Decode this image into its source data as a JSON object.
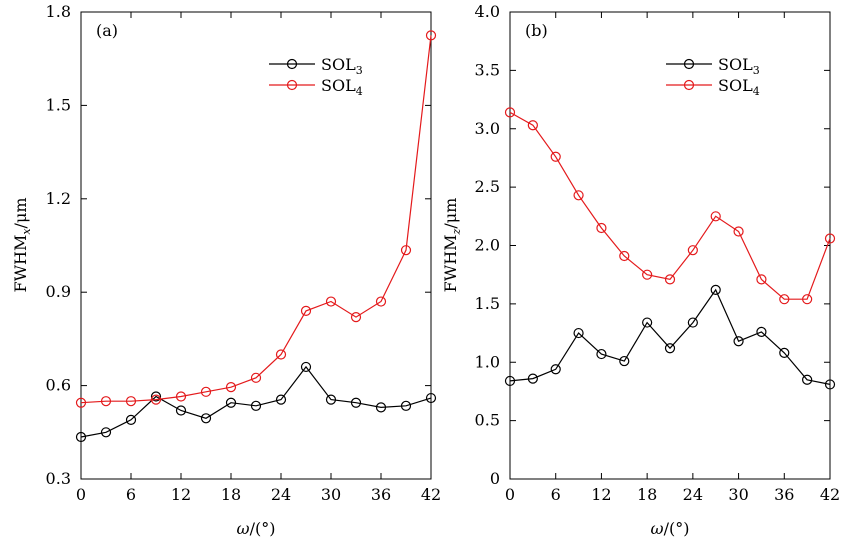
{
  "chart_data": [
    {
      "type": "line",
      "panel_label": "(a)",
      "ylabel_main": "FWHM",
      "ylabel_sub": "x",
      "ylabel_unit": "/μm",
      "xlabel_main": "ω",
      "xlabel_unit": "/(°)",
      "xlim": [
        0,
        42
      ],
      "ylim": [
        0.3,
        1.8
      ],
      "xticks": [
        0,
        6,
        12,
        18,
        24,
        30,
        36,
        42
      ],
      "yticks": [
        0.3,
        0.6,
        0.9,
        1.2,
        1.5,
        1.8
      ],
      "ytick_labels": [
        "0.3",
        "0.6",
        "0.9",
        "1.2",
        "1.5",
        "1.8"
      ],
      "legend_position": "top-right",
      "x": [
        0,
        3,
        6,
        9,
        12,
        15,
        18,
        21,
        24,
        27,
        30,
        33,
        36,
        39,
        42
      ],
      "series": [
        {
          "name": "SOL",
          "name_sub": "3",
          "color": "#000000",
          "values": [
            0.435,
            0.45,
            0.49,
            0.565,
            0.52,
            0.495,
            0.545,
            0.535,
            0.555,
            0.66,
            0.555,
            0.545,
            0.53,
            0.535,
            0.56
          ]
        },
        {
          "name": "SOL",
          "name_sub": "4",
          "color": "#e41a1c",
          "values": [
            0.545,
            0.55,
            0.55,
            0.555,
            0.565,
            0.58,
            0.595,
            0.625,
            0.7,
            0.84,
            0.87,
            0.82,
            0.87,
            1.035,
            1.725
          ]
        }
      ]
    },
    {
      "type": "line",
      "panel_label": "(b)",
      "ylabel_main": "FWHM",
      "ylabel_sub": "z",
      "ylabel_unit": "/μm",
      "xlabel_main": "ω",
      "xlabel_unit": "/(°)",
      "xlim": [
        0,
        42
      ],
      "ylim": [
        0,
        4.0
      ],
      "xticks": [
        0,
        6,
        12,
        18,
        24,
        30,
        36,
        42
      ],
      "yticks": [
        0,
        0.5,
        1.0,
        1.5,
        2.0,
        2.5,
        3.0,
        3.5,
        4.0
      ],
      "ytick_labels": [
        "0",
        "0.5",
        "1.0",
        "1.5",
        "2.0",
        "2.5",
        "3.0",
        "3.5",
        "4.0"
      ],
      "legend_position": "top-right",
      "x": [
        0,
        3,
        6,
        9,
        12,
        15,
        18,
        21,
        24,
        27,
        30,
        33,
        36,
        39,
        42
      ],
      "series": [
        {
          "name": "SOL",
          "name_sub": "3",
          "color": "#000000",
          "values": [
            0.84,
            0.86,
            0.94,
            1.25,
            1.07,
            1.01,
            1.34,
            1.12,
            1.34,
            1.62,
            1.18,
            1.26,
            1.08,
            0.85,
            0.81
          ]
        },
        {
          "name": "SOL",
          "name_sub": "4",
          "color": "#e41a1c",
          "values": [
            3.14,
            3.03,
            2.76,
            2.43,
            2.15,
            1.91,
            1.75,
            1.71,
            1.96,
            2.25,
            2.12,
            1.71,
            1.54,
            1.54,
            2.06
          ]
        }
      ]
    }
  ]
}
